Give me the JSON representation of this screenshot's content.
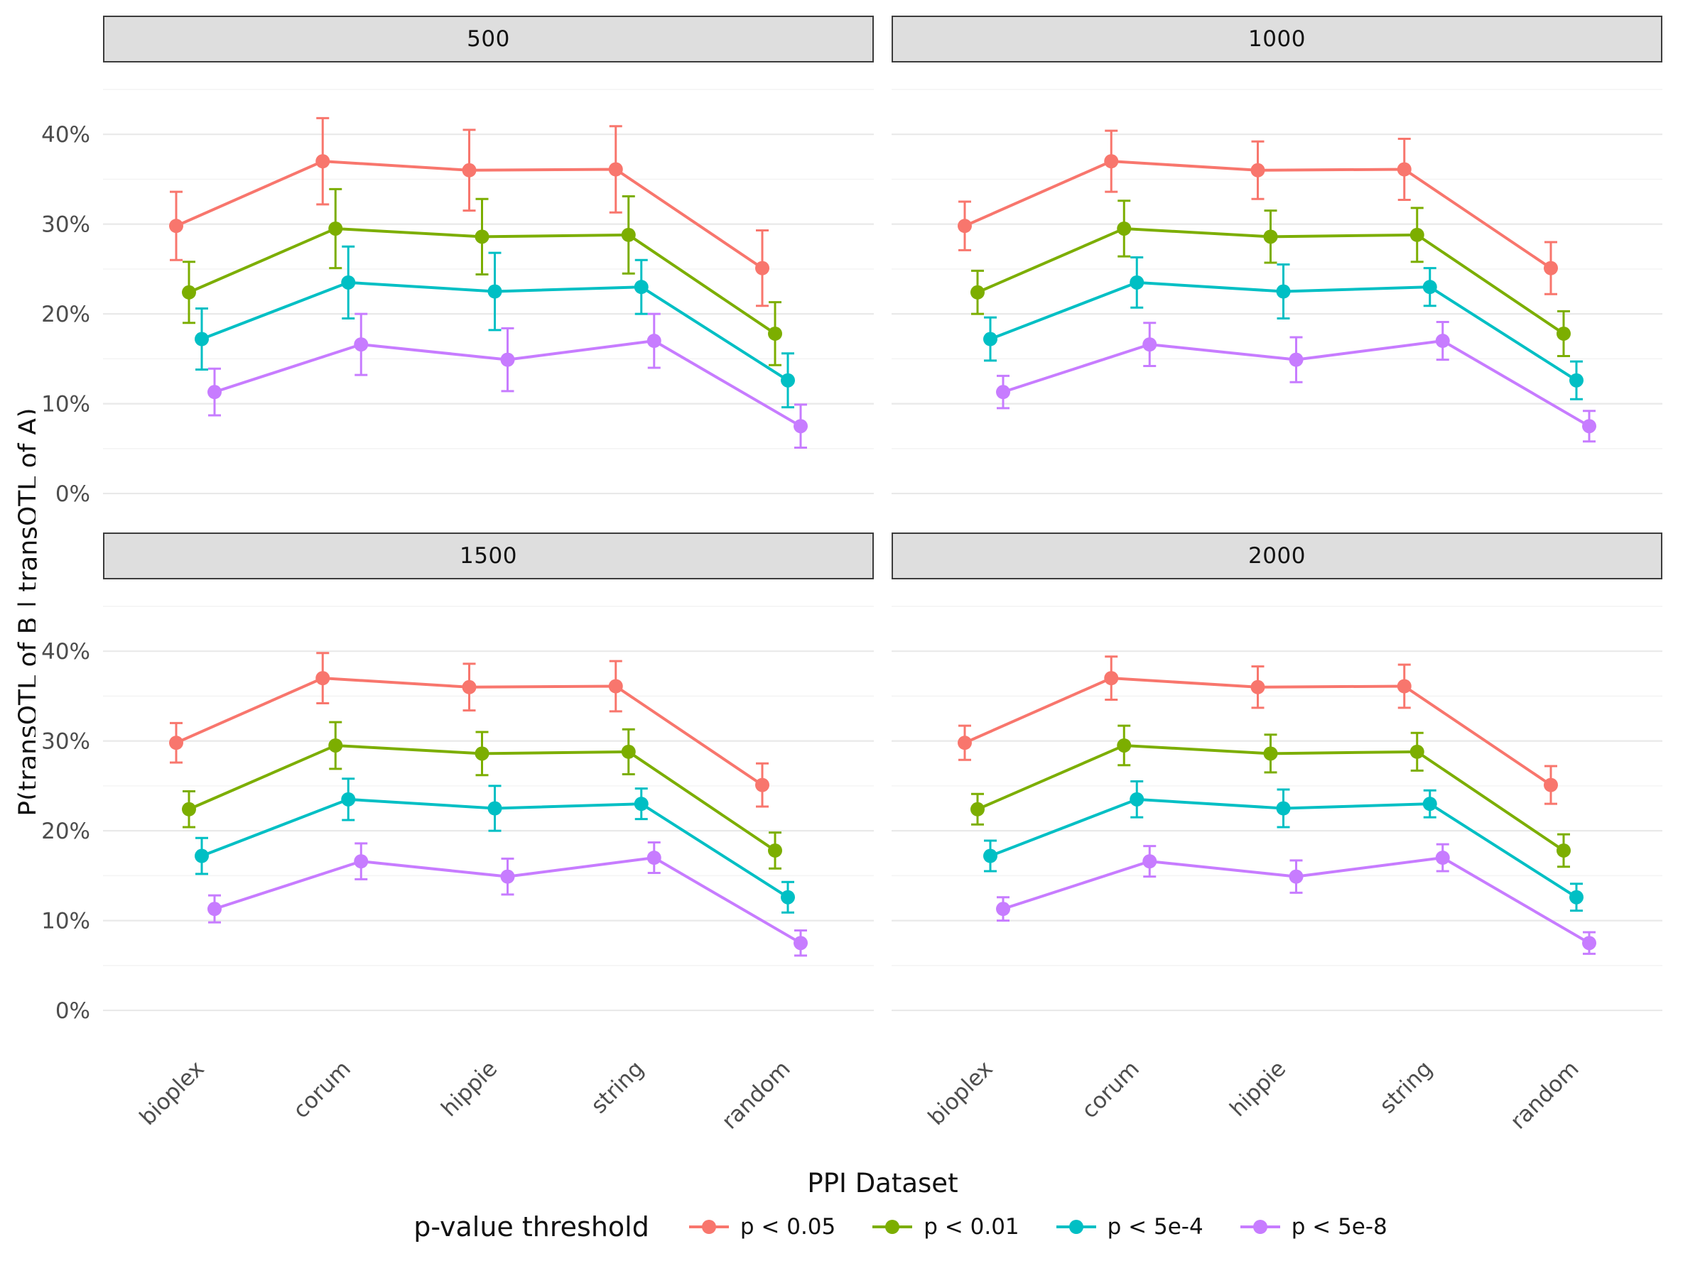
{
  "chart_data": {
    "type": "line",
    "title": "",
    "xlabel": "PPI Dataset",
    "ylabel": "P(transQTL of B | transQTL of A)",
    "legend_title": "p-value threshold",
    "legend_position": "bottom",
    "grid": true,
    "categories": [
      "bioplex",
      "corum",
      "hippie",
      "string",
      "random"
    ],
    "y_ticks": [
      0,
      10,
      20,
      30,
      40
    ],
    "y_tick_labels": [
      "0%",
      "10%",
      "20%",
      "30%",
      "40%"
    ],
    "ylim": [
      -3,
      48
    ],
    "series": [
      {
        "name": "p < 0.05",
        "color": "#F8766D"
      },
      {
        "name": "p < 0.01",
        "color": "#7CAE00"
      },
      {
        "name": "p < 5e-4",
        "color": "#00BFC4"
      },
      {
        "name": "p < 5e-8",
        "color": "#C77CFF"
      }
    ],
    "facets": [
      {
        "label": "500",
        "values": [
          [
            29.8,
            37.0,
            36.0,
            36.1,
            25.1
          ],
          [
            22.4,
            29.5,
            28.6,
            28.8,
            17.8
          ],
          [
            17.2,
            23.5,
            22.5,
            23.0,
            12.6
          ],
          [
            11.3,
            16.6,
            14.9,
            17.0,
            7.5
          ]
        ],
        "errors": [
          [
            3.8,
            4.8,
            4.5,
            4.8,
            4.2
          ],
          [
            3.4,
            4.4,
            4.2,
            4.3,
            3.5
          ],
          [
            3.4,
            4.0,
            4.3,
            3.0,
            3.0
          ],
          [
            2.6,
            3.4,
            3.5,
            3.0,
            2.4
          ]
        ]
      },
      {
        "label": "1000",
        "values": [
          [
            29.8,
            37.0,
            36.0,
            36.1,
            25.1
          ],
          [
            22.4,
            29.5,
            28.6,
            28.8,
            17.8
          ],
          [
            17.2,
            23.5,
            22.5,
            23.0,
            12.6
          ],
          [
            11.3,
            16.6,
            14.9,
            17.0,
            7.5
          ]
        ],
        "errors": [
          [
            2.7,
            3.4,
            3.2,
            3.4,
            2.9
          ],
          [
            2.4,
            3.1,
            2.9,
            3.0,
            2.5
          ],
          [
            2.4,
            2.8,
            3.0,
            2.1,
            2.1
          ],
          [
            1.8,
            2.4,
            2.5,
            2.1,
            1.7
          ]
        ]
      },
      {
        "label": "1500",
        "values": [
          [
            29.8,
            37.0,
            36.0,
            36.1,
            25.1
          ],
          [
            22.4,
            29.5,
            28.6,
            28.8,
            17.8
          ],
          [
            17.2,
            23.5,
            22.5,
            23.0,
            12.6
          ],
          [
            11.3,
            16.6,
            14.9,
            17.0,
            7.5
          ]
        ],
        "errors": [
          [
            2.2,
            2.8,
            2.6,
            2.8,
            2.4
          ],
          [
            2.0,
            2.6,
            2.4,
            2.5,
            2.0
          ],
          [
            2.0,
            2.3,
            2.5,
            1.7,
            1.7
          ],
          [
            1.5,
            2.0,
            2.0,
            1.7,
            1.4
          ]
        ]
      },
      {
        "label": "2000",
        "values": [
          [
            29.8,
            37.0,
            36.0,
            36.1,
            25.1
          ],
          [
            22.4,
            29.5,
            28.6,
            28.8,
            17.8
          ],
          [
            17.2,
            23.5,
            22.5,
            23.0,
            12.6
          ],
          [
            11.3,
            16.6,
            14.9,
            17.0,
            7.5
          ]
        ],
        "errors": [
          [
            1.9,
            2.4,
            2.3,
            2.4,
            2.1
          ],
          [
            1.7,
            2.2,
            2.1,
            2.1,
            1.8
          ],
          [
            1.7,
            2.0,
            2.1,
            1.5,
            1.5
          ],
          [
            1.3,
            1.7,
            1.8,
            1.5,
            1.2
          ]
        ]
      }
    ]
  }
}
